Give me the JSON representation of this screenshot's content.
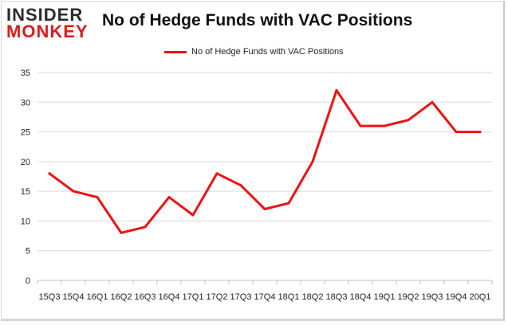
{
  "logo": {
    "top": "INSIDER",
    "bottom": "MONKEY"
  },
  "chart_data": {
    "type": "line",
    "title": "No of Hedge Funds with VAC Positions",
    "xlabel": "",
    "ylabel": "",
    "categories": [
      "15Q3",
      "15Q4",
      "16Q1",
      "16Q2",
      "16Q3",
      "16Q4",
      "17Q1",
      "17Q2",
      "17Q3",
      "17Q4",
      "18Q1",
      "18Q2",
      "18Q3",
      "18Q4",
      "19Q1",
      "19Q2",
      "19Q3",
      "19Q4",
      "20Q1"
    ],
    "series": [
      {
        "name": "No of Hedge Funds with VAC Positions",
        "values": [
          18,
          15,
          14,
          8,
          9,
          14,
          11,
          18,
          16,
          12,
          13,
          20,
          32,
          26,
          26,
          27,
          30,
          25,
          25
        ],
        "color": "#ee1111"
      }
    ],
    "ylim": [
      0,
      35
    ],
    "yticks": [
      0,
      5,
      10,
      15,
      20,
      25,
      30,
      35
    ],
    "grid": true,
    "legend_position": "top-center"
  }
}
